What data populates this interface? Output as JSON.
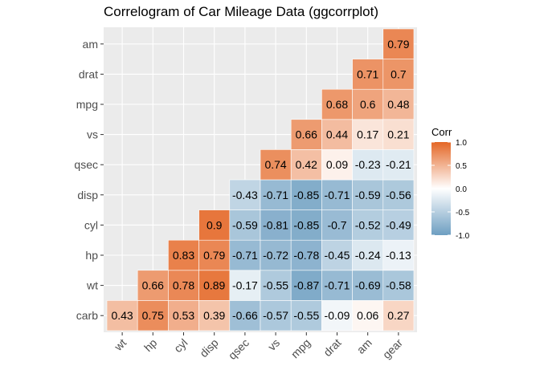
{
  "chart_data": {
    "type": "heatmap",
    "title": "Correlogram of Car Mileage Data (ggcorrplot)",
    "x_labels": [
      "wt",
      "hp",
      "cyl",
      "disp",
      "qsec",
      "vs",
      "mpg",
      "drat",
      "am",
      "gear"
    ],
    "y_labels": [
      "carb",
      "wt",
      "hp",
      "cyl",
      "disp",
      "qsec",
      "vs",
      "mpg",
      "drat",
      "am"
    ],
    "matrix": [
      [
        0.43,
        0.75,
        0.53,
        0.39,
        -0.66,
        -0.57,
        -0.55,
        -0.09,
        0.06,
        0.27
      ],
      [
        null,
        0.66,
        0.78,
        0.89,
        -0.17,
        -0.55,
        -0.87,
        -0.71,
        -0.69,
        -0.58
      ],
      [
        null,
        null,
        0.83,
        0.79,
        -0.71,
        -0.72,
        -0.78,
        -0.45,
        -0.24,
        -0.13
      ],
      [
        null,
        null,
        null,
        0.9,
        -0.59,
        -0.81,
        -0.85,
        -0.7,
        -0.52,
        -0.49
      ],
      [
        null,
        null,
        null,
        null,
        -0.43,
        -0.71,
        -0.85,
        -0.71,
        -0.59,
        -0.56
      ],
      [
        null,
        null,
        null,
        null,
        null,
        0.74,
        0.42,
        0.09,
        -0.23,
        -0.21
      ],
      [
        null,
        null,
        null,
        null,
        null,
        null,
        0.66,
        0.44,
        0.17,
        0.21
      ],
      [
        null,
        null,
        null,
        null,
        null,
        null,
        null,
        0.68,
        0.6,
        0.48
      ],
      [
        null,
        null,
        null,
        null,
        null,
        null,
        null,
        null,
        0.71,
        0.7
      ],
      [
        null,
        null,
        null,
        null,
        null,
        null,
        null,
        null,
        null,
        0.79
      ]
    ],
    "legend": {
      "title": "Corr",
      "ticks": [
        1.0,
        0.5,
        0.0,
        -0.5,
        -1.0
      ],
      "tick_labels": [
        "1.0",
        "0.5",
        "0.0",
        "-0.5",
        "-1.0"
      ],
      "placement": "right"
    },
    "colors": {
      "low": "#6D9EC1",
      "mid": "#FFFFFF",
      "high": "#E46726",
      "panel": "#EBEBEB",
      "grid": "#FFFFFF"
    },
    "value_range": [
      -1,
      1
    ],
    "grid": true
  }
}
